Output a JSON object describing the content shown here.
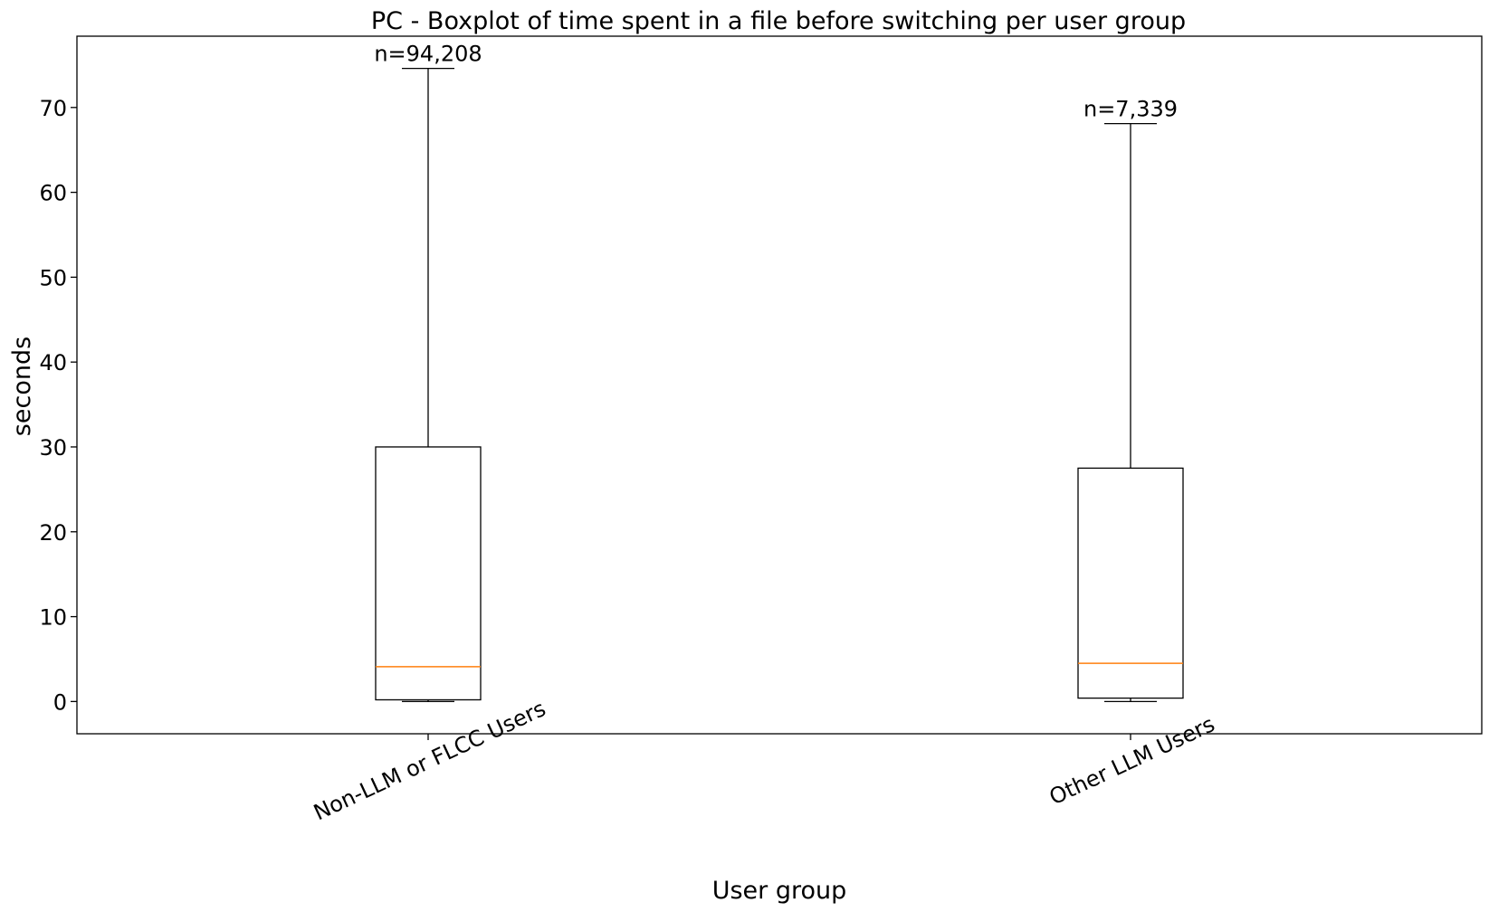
{
  "chart_data": {
    "type": "boxplot",
    "title": "PC - Boxplot of time spent in a file before switching per user group",
    "xlabel": "User group",
    "ylabel": "seconds",
    "ylim": [
      -3.8,
      78.4
    ],
    "yticks": [
      0,
      10,
      20,
      30,
      40,
      50,
      60,
      70
    ],
    "grid": false,
    "categories": [
      "Non-LLM or FLCC Users",
      "Other LLM Users"
    ],
    "series": [
      {
        "category": "Non-LLM or FLCC Users",
        "whisker_low": 0,
        "q1": 0.2,
        "median": 4.1,
        "q3": 30.0,
        "whisker_high": 74.6,
        "annotation": "n=94,208"
      },
      {
        "category": "Other LLM Users",
        "whisker_low": 0,
        "q1": 0.4,
        "median": 4.5,
        "q3": 27.5,
        "whisker_high": 68.1,
        "annotation": "n=7,339"
      }
    ],
    "colors": {
      "box": "#000000",
      "median": "#ff7f0e",
      "axes": "#000000"
    }
  }
}
